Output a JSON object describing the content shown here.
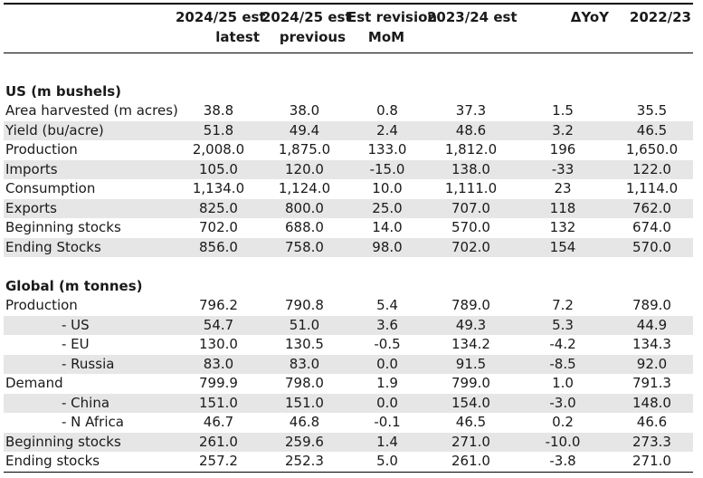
{
  "header": {
    "columns": [
      {
        "line1": "2024/25 est",
        "line2": "latest"
      },
      {
        "line1": "2024/25 est",
        "line2": "previous"
      },
      {
        "line1": "Est revision",
        "line2": "MoM"
      },
      {
        "line1": "2023/24 est",
        "line2": ""
      },
      {
        "line1": "ΔYoY",
        "line2": ""
      },
      {
        "line1": "2022/23",
        "line2": ""
      }
    ]
  },
  "sections": [
    {
      "title": "US (m bushels)",
      "rows": [
        {
          "label": "Area harvested (m acres)",
          "indent": false,
          "values": [
            "38.8",
            "38.0",
            "0.8",
            "37.3",
            "1.5",
            "35.5"
          ]
        },
        {
          "label": "Yield (bu/acre)",
          "indent": false,
          "values": [
            "51.8",
            "49.4",
            "2.4",
            "48.6",
            "3.2",
            "46.5"
          ]
        },
        {
          "label": "Production",
          "indent": false,
          "values": [
            "2,008.0",
            "1,875.0",
            "133.0",
            "1,812.0",
            "196",
            "1,650.0"
          ]
        },
        {
          "label": "Imports",
          "indent": false,
          "values": [
            "105.0",
            "120.0",
            "-15.0",
            "138.0",
            "-33",
            "122.0"
          ]
        },
        {
          "label": "Consumption",
          "indent": false,
          "values": [
            "1,134.0",
            "1,124.0",
            "10.0",
            "1,111.0",
            "23",
            "1,114.0"
          ]
        },
        {
          "label": "Exports",
          "indent": false,
          "values": [
            "825.0",
            "800.0",
            "25.0",
            "707.0",
            "118",
            "762.0"
          ]
        },
        {
          "label": "Beginning stocks",
          "indent": false,
          "values": [
            "702.0",
            "688.0",
            "14.0",
            "570.0",
            "132",
            "674.0"
          ]
        },
        {
          "label": "Ending Stocks",
          "indent": false,
          "values": [
            "856.0",
            "758.0",
            "98.0",
            "702.0",
            "154",
            "570.0"
          ]
        }
      ]
    },
    {
      "title": "Global (m tonnes)",
      "rows": [
        {
          "label": "Production",
          "indent": false,
          "values": [
            "796.2",
            "790.8",
            "5.4",
            "789.0",
            "7.2",
            "789.0"
          ]
        },
        {
          "label": "- US",
          "indent": true,
          "values": [
            "54.7",
            "51.0",
            "3.6",
            "49.3",
            "5.3",
            "44.9"
          ]
        },
        {
          "label": "- EU",
          "indent": true,
          "values": [
            "130.0",
            "130.5",
            "-0.5",
            "134.2",
            "-4.2",
            "134.3"
          ]
        },
        {
          "label": "- Russia",
          "indent": true,
          "values": [
            "83.0",
            "83.0",
            "0.0",
            "91.5",
            "-8.5",
            "92.0"
          ]
        },
        {
          "label": "Demand",
          "indent": false,
          "values": [
            "799.9",
            "798.0",
            "1.9",
            "799.0",
            "1.0",
            "791.3"
          ]
        },
        {
          "label": "- China",
          "indent": true,
          "values": [
            "151.0",
            "151.0",
            "0.0",
            "154.0",
            "-3.0",
            "148.0"
          ]
        },
        {
          "label": "- N Africa",
          "indent": true,
          "values": [
            "46.7",
            "46.8",
            "-0.1",
            "46.5",
            "0.2",
            "46.6"
          ]
        },
        {
          "label": "Beginning stocks",
          "indent": false,
          "values": [
            "261.0",
            "259.6",
            "1.4",
            "271.0",
            "-10.0",
            "273.3"
          ]
        },
        {
          "label": "Ending stocks",
          "indent": false,
          "values": [
            "257.2",
            "252.3",
            "5.0",
            "261.0",
            "-3.8",
            "271.0"
          ]
        }
      ]
    }
  ],
  "colors": {
    "row_shade": "#e6e6e6",
    "text": "#1a1a1a",
    "rule": "#000000"
  }
}
